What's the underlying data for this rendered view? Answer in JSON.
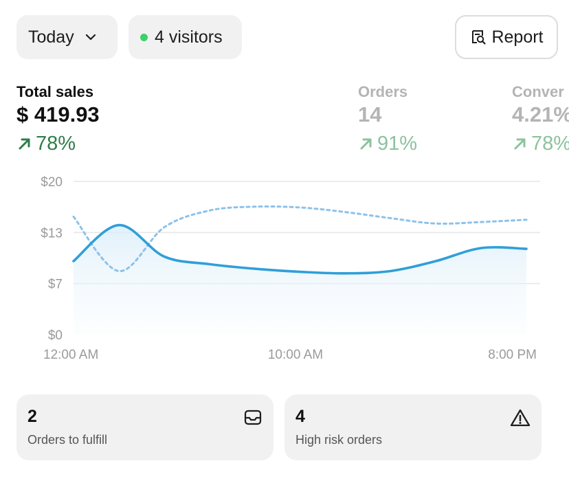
{
  "header": {
    "date_filter_label": "Today",
    "visitors_label": "4 visitors",
    "visitors_dot_color": "#3fcf6b",
    "report_label": "Report"
  },
  "metrics": [
    {
      "label": "Total sales",
      "value": "$ 419.93",
      "change": "78%",
      "active": true
    },
    {
      "label": "Orders",
      "value": "14",
      "change": "91%",
      "active": false
    },
    {
      "label": "Conver",
      "value": "4.21%",
      "change": "78%",
      "active": false
    }
  ],
  "chart_data": {
    "type": "line",
    "y_tick_labels": [
      "$0",
      "$7",
      "$13",
      "$20"
    ],
    "ylim": [
      0,
      20
    ],
    "x_tick_labels": [
      "12:00 AM",
      "10:00 AM",
      "8:00 PM"
    ],
    "x_hours": [
      0,
      2,
      4,
      6,
      8,
      10,
      12,
      14,
      16,
      18,
      20
    ],
    "series": [
      {
        "style": "solid",
        "color": "#2f9fd8",
        "values": [
          9.6,
          14.3,
          10.2,
          9.2,
          8.6,
          8.2,
          8.0,
          8.3,
          9.6,
          11.3,
          11.2
        ]
      },
      {
        "style": "dashed",
        "color": "#8cc2ea",
        "values": [
          15.4,
          8.3,
          14.0,
          16.2,
          16.7,
          16.6,
          16.0,
          15.2,
          14.5,
          14.7,
          15.0
        ]
      }
    ],
    "grid": true
  },
  "cards": [
    {
      "count": "2",
      "label": "Orders to fulfill",
      "icon": "inbox-icon"
    },
    {
      "count": "4",
      "label": "High risk orders",
      "icon": "warning-icon"
    }
  ]
}
